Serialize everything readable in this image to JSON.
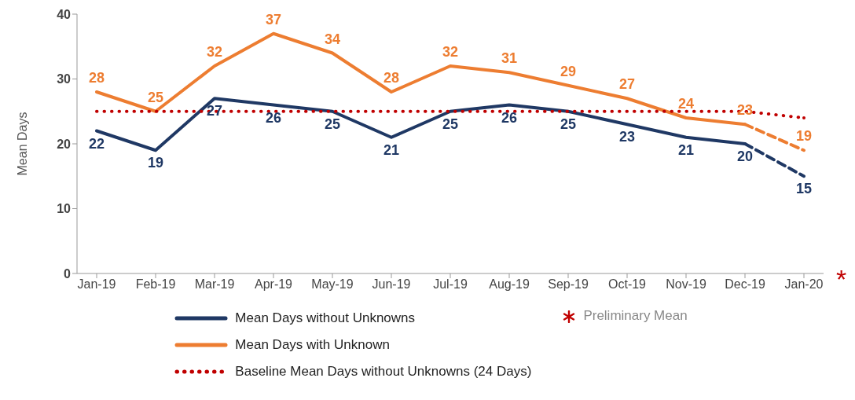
{
  "chart_data": {
    "type": "line",
    "ylabel": "Mean Days",
    "categories": [
      "Jan-19",
      "Feb-19",
      "Mar-19",
      "Apr-19",
      "May-19",
      "Jun-19",
      "Jul-19",
      "Aug-19",
      "Sep-19",
      "Oct-19",
      "Nov-19",
      "Dec-19",
      "Jan-20"
    ],
    "series": [
      {
        "name": "Mean Days without Unknowns",
        "color": "#1f3864",
        "line_style": "solid",
        "values": [
          22,
          19,
          27,
          26,
          25,
          21,
          25,
          26,
          25,
          23,
          21,
          20,
          null
        ],
        "value_labels": [
          "22",
          "19",
          "27",
          "26",
          "25",
          "21",
          "25",
          "26",
          "25",
          "23",
          "21",
          "20",
          null
        ]
      },
      {
        "name": "Mean Days with Unknown",
        "color": "#ed7d31",
        "line_style": "solid",
        "values": [
          28,
          25,
          32,
          37,
          34,
          28,
          32,
          31,
          29,
          27,
          24,
          23,
          null
        ],
        "value_labels": [
          "28",
          "25",
          "32",
          "37",
          "34",
          "28",
          "32",
          "31",
          "29",
          "27",
          "24",
          "23",
          null
        ]
      },
      {
        "color": "#1f3864",
        "line_style": "dashed",
        "values": [
          null,
          null,
          null,
          null,
          null,
          null,
          null,
          null,
          null,
          null,
          null,
          20,
          15
        ],
        "value_labels": [
          null,
          null,
          null,
          null,
          null,
          null,
          null,
          null,
          null,
          null,
          null,
          null,
          "15"
        ]
      },
      {
        "color": "#ed7d31",
        "line_style": "dashed",
        "values": [
          null,
          null,
          null,
          null,
          null,
          null,
          null,
          null,
          null,
          null,
          null,
          23,
          19
        ],
        "value_labels": [
          null,
          null,
          null,
          null,
          null,
          null,
          null,
          null,
          null,
          null,
          null,
          null,
          "19"
        ]
      },
      {
        "name": "Baseline Mean Days without Unknowns (24 Days)",
        "color": "#c00000",
        "line_style": "dotted",
        "values": [
          25,
          25,
          25,
          25,
          25,
          25,
          25,
          25,
          25,
          25,
          25,
          25,
          24
        ]
      }
    ],
    "ylim": [
      0,
      40
    ],
    "yticks": [
      0,
      10,
      20,
      30,
      40
    ],
    "grid": false,
    "legend": "bottom",
    "marker": "none",
    "annotations": [
      "*",
      "Preliminary Mean"
    ]
  }
}
